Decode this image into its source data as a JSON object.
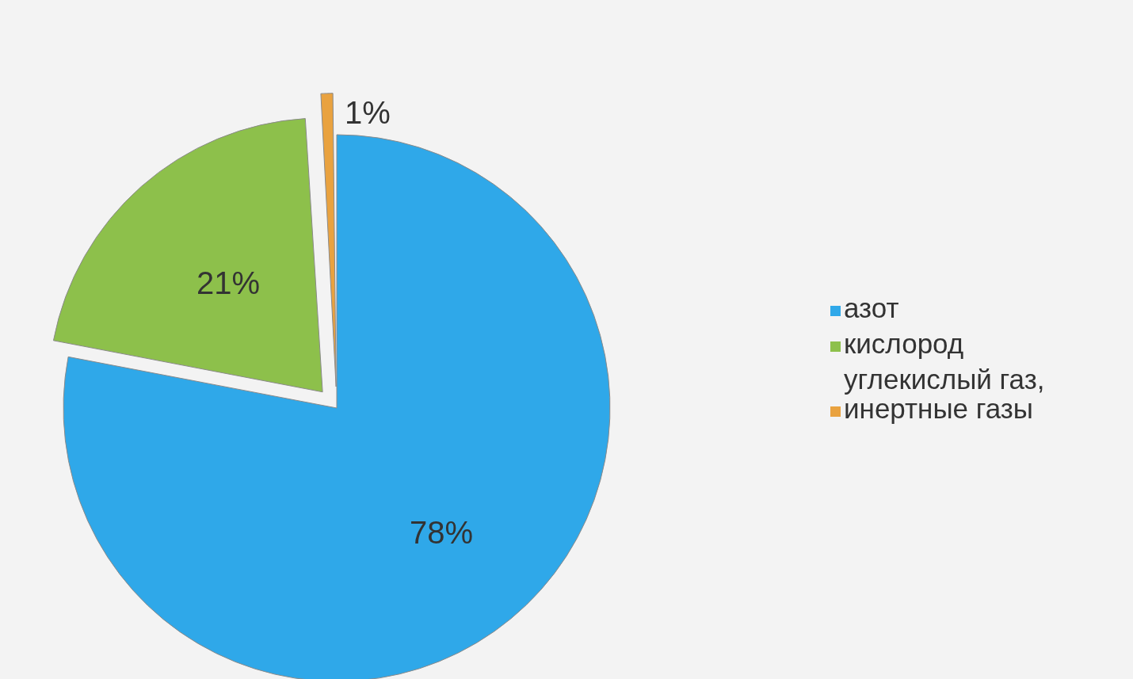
{
  "chart_data": {
    "type": "pie",
    "categories": [
      "азот",
      "кислород",
      "углекислый газ, инертные газы"
    ],
    "values": [
      78,
      21,
      1
    ],
    "colors": [
      "#2fa8e9",
      "#8dc04b",
      "#e9a23f"
    ],
    "value_labels": [
      "78%",
      "21%",
      "1%"
    ],
    "legend": "right"
  }
}
